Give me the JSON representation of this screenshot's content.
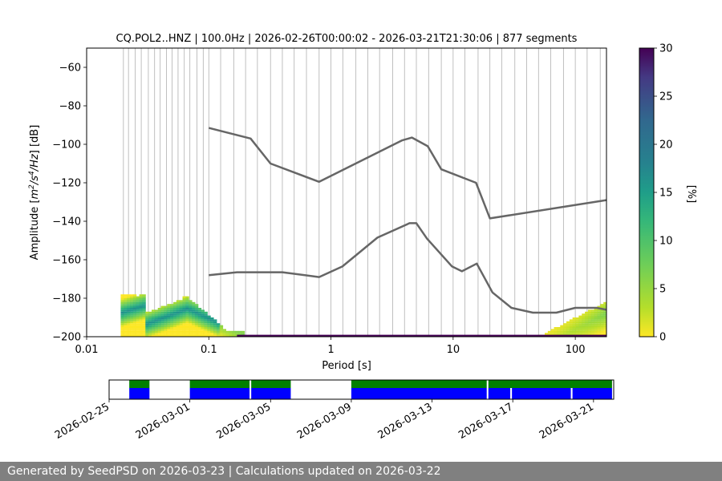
{
  "chart_data": [
    {
      "type": "heatmap",
      "title": "CQ.POL2..HNZ | 100.0Hz | 2026-02-26T00:00:02 - 2026-03-21T21:30:06 | 877 segments",
      "xlabel": "Period [s]",
      "ylabel_prefix": "Amplitude [",
      "ylabel_math": "m",
      "ylabel_sup1": "2",
      "ylabel_mid": "/s",
      "ylabel_sup2": "4",
      "ylabel_suffix": "/Hz] [dB]",
      "x_scale": "log",
      "xlim": [
        0.01,
        180
      ],
      "ylim": [
        -200,
        -50
      ],
      "x_ticks": [
        0.01,
        0.1,
        1,
        10,
        100
      ],
      "x_tick_labels": [
        "0.01",
        "0.1",
        "1",
        "10",
        "100"
      ],
      "y_ticks": [
        -200,
        -180,
        -160,
        -140,
        -120,
        -100,
        -80,
        -60
      ],
      "y_tick_labels": [
        "−200",
        "−180",
        "−160",
        "−140",
        "−120",
        "−100",
        "−80",
        "−60"
      ],
      "grid": "vertical, at each period bin",
      "series": [
        {
          "name": "",
          "color": "#666666",
          "points": [
            [
              0.1,
              -91.5
            ],
            [
              0.22,
              -97
            ],
            [
              0.32,
              -110
            ],
            [
              0.8,
              -119.5
            ],
            [
              3.8,
              -98
            ],
            [
              4.6,
              -96.5
            ],
            [
              6.2,
              -101
            ],
            [
              8,
              -113
            ],
            [
              15.4,
              -120
            ],
            [
              20,
              -138.5
            ],
            [
              180,
              -129
            ]
          ]
        },
        {
          "name": "",
          "color": "#666666",
          "points": [
            [
              0.1,
              -168
            ],
            [
              0.17,
              -166.5
            ],
            [
              0.4,
              -166.5
            ],
            [
              0.8,
              -169
            ],
            [
              1.24,
              -163.5
            ],
            [
              2.4,
              -148.5
            ],
            [
              4.4,
              -141
            ],
            [
              5,
              -141
            ],
            [
              6.1,
              -149
            ],
            [
              9.8,
              -163.5
            ],
            [
              11.8,
              -166
            ],
            [
              15.6,
              -162
            ],
            [
              21,
              -177
            ],
            [
              30,
              -185
            ],
            [
              45,
              -187.5
            ],
            [
              70,
              -187.5
            ],
            [
              100,
              -185
            ],
            [
              150,
              -185
            ],
            [
              180,
              -186
            ]
          ]
        }
      ],
      "colorbar": {
        "label": "[%]",
        "range": [
          0,
          30
        ],
        "ticks": [
          0,
          5,
          10,
          15,
          20,
          25,
          30
        ],
        "colormap": "viridis_r"
      }
    },
    {
      "type": "timeline",
      "x_tick_labels": [
        "2026-02-25",
        "2026-03-01",
        "2026-03-05",
        "2026-03-09",
        "2026-03-13",
        "2026-03-17",
        "2026-03-21"
      ],
      "xlim": [
        "2026-02-25T00:00",
        "2026-03-22T00:00"
      ],
      "data_segments": [
        [
          "2026-02-26T00:00",
          "2026-02-27T00:00"
        ],
        [
          "2026-03-01T00:00",
          "2026-03-03T23:00"
        ],
        [
          "2026-03-04T01:00",
          "2026-03-06T00:00"
        ],
        [
          "2026-03-09T00:00",
          "2026-03-15T17:00"
        ],
        [
          "2026-03-15T19:00",
          "2026-03-16T21:00"
        ],
        [
          "2026-03-16T23:00",
          "2026-03-19T21:00"
        ],
        [
          "2026-03-19T23:00",
          "2026-03-21T22:00"
        ]
      ],
      "psd_segments": [
        [
          "2026-02-26T00:00",
          "2026-02-27T00:00"
        ],
        [
          "2026-03-01T00:00",
          "2026-03-03T23:00"
        ],
        [
          "2026-03-04T01:00",
          "2026-03-06T00:00"
        ],
        [
          "2026-03-09T00:00",
          "2026-03-15T17:00"
        ],
        [
          "2026-03-15T19:00",
          "2026-03-21T22:00"
        ]
      ],
      "data_color": "#0000ff",
      "psd_color": "#008000"
    }
  ],
  "footer": {
    "text": "Generated by SeedPSD on 2026-03-23 | Calculations updated on 2026-03-22",
    "background": "#808080"
  }
}
